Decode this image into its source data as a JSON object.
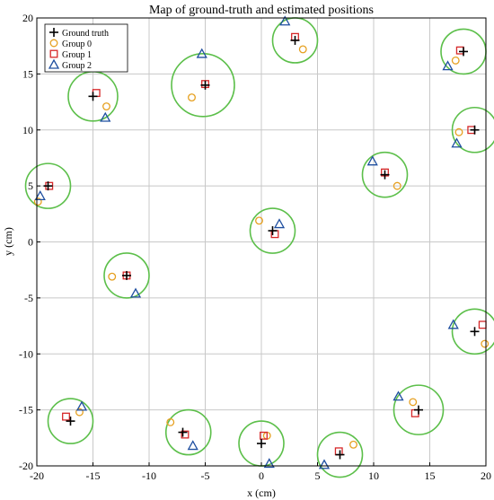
{
  "chart_data": {
    "type": "scatter",
    "title": "Map of ground-truth and estimated positions",
    "xlabel": "x (cm)",
    "ylabel": "y (cm)",
    "xlim": [
      -20,
      20
    ],
    "ylim": [
      -20,
      20
    ],
    "x_ticks": [
      -20,
      -15,
      -10,
      -5,
      0,
      5,
      10,
      15,
      20
    ],
    "y_ticks": [
      -20,
      -15,
      -10,
      -5,
      0,
      5,
      10,
      15,
      20
    ],
    "grid": true,
    "legend_position": "top-left",
    "colors": {
      "ground_truth": "#000000",
      "group0": "#e6a020",
      "group1": "#d62728",
      "group2": "#1f4fa0",
      "circle": "#5cbf4a"
    },
    "circles": [
      {
        "cx": 3,
        "cy": 18,
        "r": 2
      },
      {
        "cx": 18,
        "cy": 17,
        "r": 2
      },
      {
        "cx": -15,
        "cy": 13,
        "r": 2.2
      },
      {
        "cx": -5.2,
        "cy": 14,
        "r": 2.8
      },
      {
        "cx": 19,
        "cy": 10,
        "r": 2
      },
      {
        "cx": -19,
        "cy": 5,
        "r": 2
      },
      {
        "cx": 11,
        "cy": 6,
        "r": 2
      },
      {
        "cx": 1,
        "cy": 1,
        "r": 2
      },
      {
        "cx": -12,
        "cy": -3,
        "r": 2
      },
      {
        "cx": 19,
        "cy": -8,
        "r": 2
      },
      {
        "cx": 14,
        "cy": -15,
        "r": 2.2
      },
      {
        "cx": -17,
        "cy": -16,
        "r": 2
      },
      {
        "cx": -6.5,
        "cy": -17,
        "r": 2
      },
      {
        "cx": 0,
        "cy": -18,
        "r": 2
      },
      {
        "cx": 7,
        "cy": -19,
        "r": 2
      }
    ],
    "series": [
      {
        "name": "Ground truth",
        "marker": "plus",
        "points": [
          [
            3,
            18
          ],
          [
            18,
            17
          ],
          [
            -15,
            13
          ],
          [
            -5,
            14
          ],
          [
            19,
            10
          ],
          [
            -19,
            5
          ],
          [
            11,
            6
          ],
          [
            1,
            1
          ],
          [
            -12,
            -3
          ],
          [
            19,
            -8
          ],
          [
            14,
            -15
          ],
          [
            -17,
            -16
          ],
          [
            -7,
            -17
          ],
          [
            0,
            -18
          ],
          [
            7,
            -19
          ]
        ]
      },
      {
        "name": "Group 0",
        "marker": "circle",
        "points": [
          [
            3.7,
            17.2
          ],
          [
            17.3,
            16.2
          ],
          [
            -13.8,
            12.1
          ],
          [
            -6.2,
            12.9
          ],
          [
            17.6,
            9.8
          ],
          [
            -19.9,
            3.6
          ],
          [
            12.1,
            5
          ],
          [
            -0.2,
            1.9
          ],
          [
            -13.3,
            -3.1
          ],
          [
            19.9,
            -9.1
          ],
          [
            13.5,
            -14.3
          ],
          [
            -16.2,
            -15.2
          ],
          [
            -8.1,
            -16.1
          ],
          [
            0.5,
            -17.3
          ],
          [
            8.2,
            -18.1
          ]
        ]
      },
      {
        "name": "Group 1",
        "marker": "square",
        "points": [
          [
            3,
            18.3
          ],
          [
            17.7,
            17.1
          ],
          [
            -14.7,
            13.3
          ],
          [
            -5,
            14.1
          ],
          [
            18.7,
            10
          ],
          [
            -18.9,
            5
          ],
          [
            11,
            6.2
          ],
          [
            1.2,
            0.7
          ],
          [
            -12,
            -3
          ],
          [
            19.7,
            -7.4
          ],
          [
            13.7,
            -15.3
          ],
          [
            -17.4,
            -15.6
          ],
          [
            -6.8,
            -17.2
          ],
          [
            0.2,
            -17.3
          ],
          [
            6.9,
            -18.7
          ]
        ]
      },
      {
        "name": "Group 2",
        "marker": "triangle",
        "points": [
          [
            2.1,
            19.7
          ],
          [
            16.6,
            15.7
          ],
          [
            -13.9,
            11.1
          ],
          [
            -5.3,
            16.8
          ],
          [
            17.4,
            8.8
          ],
          [
            -19.7,
            4.1
          ],
          [
            9.9,
            7.2
          ],
          [
            1.6,
            1.6
          ],
          [
            -11.2,
            -4.6
          ],
          [
            17.1,
            -7.4
          ],
          [
            12.2,
            -13.8
          ],
          [
            -16,
            -14.7
          ],
          [
            -6.1,
            -18.2
          ],
          [
            0.7,
            -19.8
          ],
          [
            5.6,
            -19.9
          ]
        ]
      }
    ]
  }
}
